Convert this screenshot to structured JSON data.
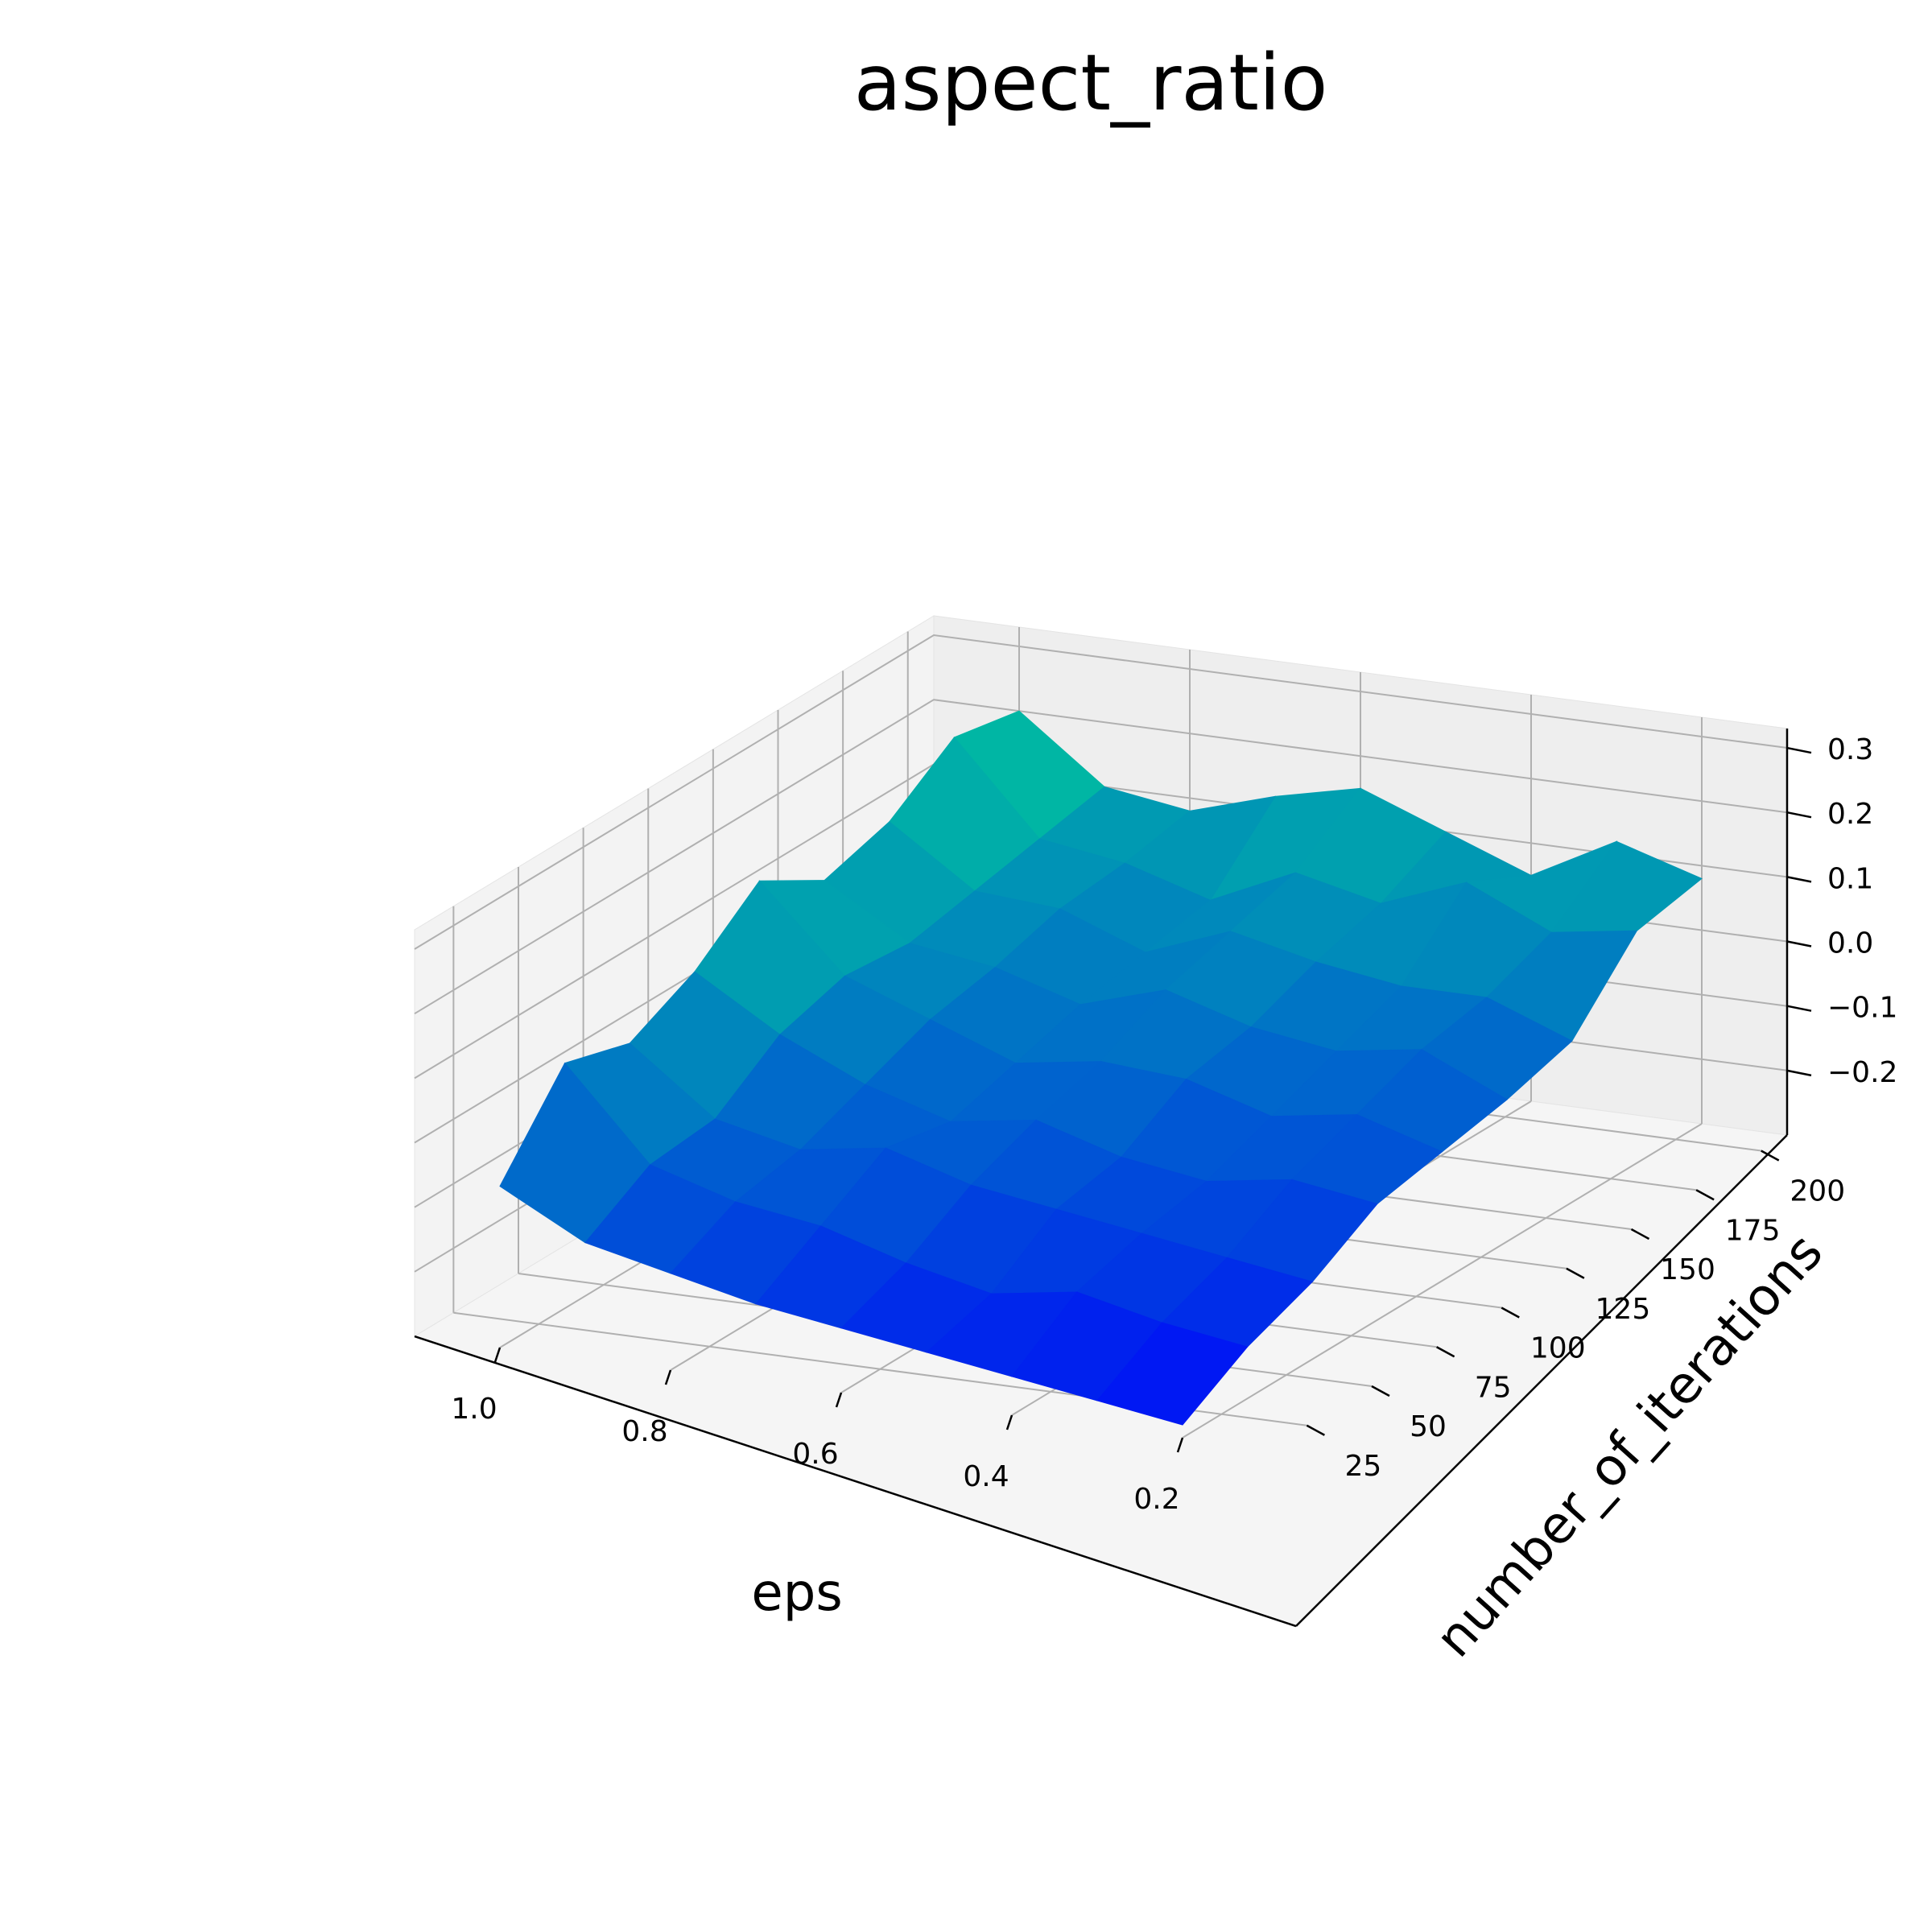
{
  "chart_data": {
    "type": "surface3d",
    "title": "aspect_ratio",
    "xlabel": "eps",
    "ylabel": "number_of_iterations",
    "zlabel": "",
    "x_ticks": [
      "1.0",
      "0.8",
      "0.6",
      "0.4",
      "0.2"
    ],
    "y_ticks": [
      "25",
      "50",
      "75",
      "100",
      "125",
      "150",
      "175",
      "200"
    ],
    "z_ticks": [
      "−0.2",
      "−0.1",
      "0.0",
      "0.1",
      "0.2",
      "0.3"
    ],
    "xlim": [
      0.1,
      1.1
    ],
    "ylim": [
      10,
      210
    ],
    "zlim": [
      -0.3,
      0.33
    ],
    "colormap": "winter",
    "colormap_colors": [
      "#0000ff",
      "#00ff80"
    ],
    "grid": true,
    "x": [
      1.0,
      0.9,
      0.8,
      0.7,
      0.6,
      0.5,
      0.4,
      0.3,
      0.2
    ],
    "y": [
      10,
      35,
      60,
      85,
      110,
      135,
      160,
      185,
      210
    ],
    "z": [
      [
        -0.05,
        -0.12,
        -0.15,
        -0.18,
        -0.2,
        -0.22,
        -0.24,
        -0.26,
        -0.28
      ],
      [
        0.08,
        -0.06,
        -0.1,
        -0.12,
        -0.16,
        -0.19,
        -0.17,
        -0.2,
        -0.22
      ],
      [
        0.05,
        -0.05,
        -0.08,
        -0.06,
        -0.1,
        -0.12,
        -0.14,
        -0.16,
        -0.18
      ],
      [
        0.1,
        0.02,
        -0.04,
        -0.08,
        -0.06,
        -0.1,
        -0.12,
        -0.1,
        -0.12
      ],
      [
        0.18,
        0.05,
        0.0,
        -0.05,
        -0.03,
        -0.04,
        -0.08,
        -0.06,
        -0.1
      ],
      [
        0.12,
        0.04,
        0.02,
        -0.02,
        0.02,
        -0.02,
        -0.04,
        -0.02,
        -0.08
      ],
      [
        0.15,
        0.06,
        0.05,
        0.0,
        0.05,
        0.02,
        0.0,
        0.0,
        -0.05
      ],
      [
        0.22,
        0.08,
        0.06,
        0.02,
        0.08,
        0.05,
        0.1,
        0.04,
        0.06
      ],
      [
        0.2,
        0.1,
        0.08,
        0.12,
        0.15,
        0.1,
        0.05,
        0.12,
        0.08
      ]
    ]
  }
}
